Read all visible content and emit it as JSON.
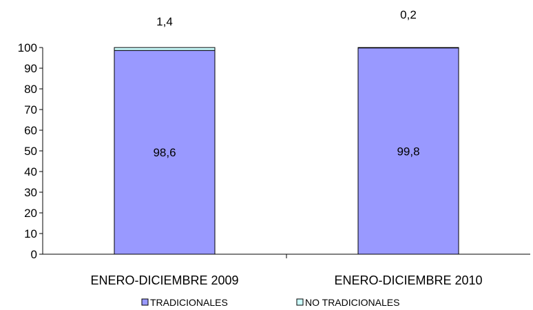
{
  "chart_data": {
    "type": "bar",
    "stacked": true,
    "categories": [
      "ENERO-DICIEMBRE 2009",
      "ENERO-DICIEMBRE 2010"
    ],
    "series": [
      {
        "name": "TRADICIONALES",
        "values": [
          98.6,
          99.8
        ],
        "labels": [
          "98,6",
          "99,8"
        ],
        "color": "#9999ff"
      },
      {
        "name": "NO TRADICIONALES",
        "values": [
          1.4,
          0.2
        ],
        "labels": [
          "1,4",
          "0,2"
        ],
        "color": "#ccffff"
      }
    ],
    "ylim": [
      0,
      100
    ],
    "yticks": [
      0,
      10,
      20,
      30,
      40,
      50,
      60,
      70,
      80,
      90,
      100
    ],
    "grid": false,
    "legend_position": "bottom"
  }
}
